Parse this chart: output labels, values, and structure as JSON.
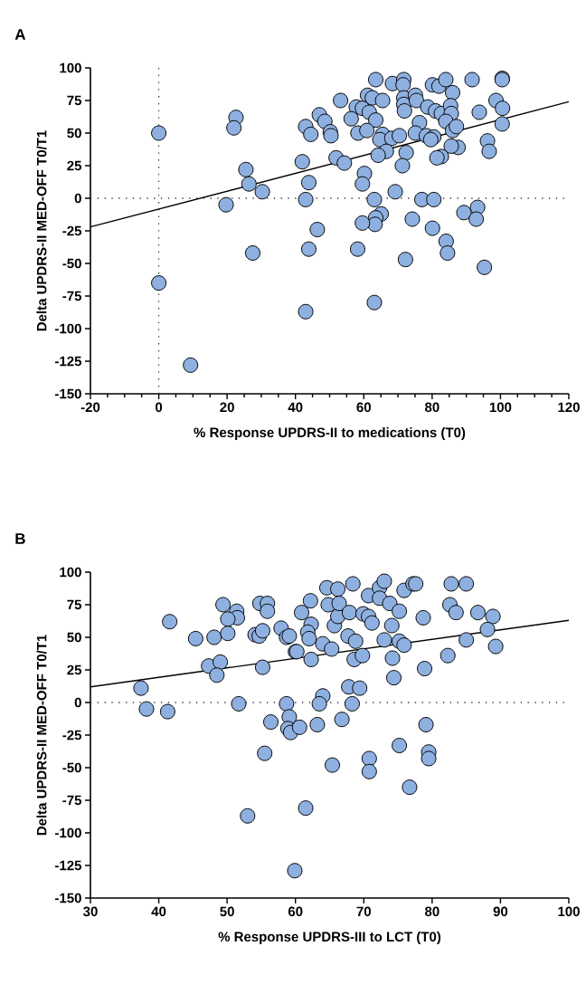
{
  "chart_data": [
    {
      "type": "scatter",
      "title": "A",
      "xlabel": "% Response UPDRS-II to medications (T0)",
      "ylabel": "Delta UPDRS-II MED-OFF T0/T1",
      "xlim": [
        -20,
        120
      ],
      "ylim": [
        -150,
        100
      ],
      "xticks": [
        -20,
        {
          "value": -15,
          "label": null
        },
        {
          "value": -10,
          "label": null
        },
        {
          "value": -5,
          "label": null
        },
        0,
        {
          "value": 5,
          "label": null
        },
        {
          "value": 10,
          "label": null
        },
        {
          "value": 15,
          "label": null
        },
        20,
        {
          "value": 25,
          "label": null
        },
        {
          "value": 30,
          "label": null
        },
        {
          "value": 35,
          "label": null
        },
        40,
        {
          "value": 45,
          "label": null
        },
        {
          "value": 50,
          "label": null
        },
        {
          "value": 55,
          "label": null
        },
        60,
        {
          "value": 65,
          "label": null
        },
        {
          "value": 70,
          "label": null
        },
        {
          "value": 75,
          "label": null
        },
        80,
        {
          "value": 85,
          "label": null
        },
        {
          "value": 90,
          "label": null
        },
        {
          "value": 95,
          "label": null
        },
        100,
        {
          "value": 105,
          "label": null
        },
        {
          "value": 110,
          "label": null
        },
        {
          "value": 115,
          "label": null
        },
        120
      ],
      "yticks": [
        -150,
        -125,
        -100,
        -75,
        -50,
        -25,
        0,
        25,
        50,
        75,
        100
      ],
      "ref_lines": [
        {
          "axis": "y",
          "value": 0,
          "line_style": "dotted"
        },
        {
          "axis": "x",
          "value": 0,
          "line_style": "dotted"
        }
      ],
      "series": [
        {
          "color": "#8eb0e0",
          "marker": "circle",
          "x": [
            0,
            22.6,
            22,
            25.5,
            26.4,
            30.3,
            19.7,
            27.5,
            0,
            9.3,
            63.5,
            68.4,
            71.7,
            71.5,
            80.1,
            82,
            84,
            86,
            91.7,
            100.5,
            100.5,
            53.2,
            61.1,
            62.5,
            65.5,
            57.8,
            59.6,
            61.6,
            63.5,
            56.3,
            47,
            48.6,
            43,
            44.5,
            50.2,
            50.4,
            58.3,
            60.9,
            71.7,
            71.7,
            71.9,
            75.1,
            75.4,
            78.7,
            81,
            82.7,
            85.4,
            85.6,
            84,
            76.3,
            75.1,
            78.3,
            80.5,
            86,
            87.1,
            87.6,
            85.6,
            82.7,
            81.4,
            65.5,
            64.7,
            68.2,
            70.4,
            66.6,
            64.2,
            72.4,
            71.3,
            79.6,
            93.8,
            98.7,
            100.6,
            100.5,
            96.2,
            96.7,
            42,
            51.9,
            54.3,
            43.9,
            60.2,
            59.6,
            43,
            63.1,
            69.2,
            77,
            80.5,
            65.1,
            63.5,
            63.3,
            59.6,
            74.2,
            89.3,
            93.3,
            92.9,
            80.1,
            46.4,
            43.9,
            58.2,
            84.1,
            84.5,
            72.2,
            95.3,
            63.1,
            43
          ],
          "values": [
            50,
            62,
            54,
            22,
            11,
            5,
            -5,
            -42,
            -65,
            -128,
            91,
            88,
            91,
            87,
            87,
            86,
            91,
            81,
            91,
            92,
            91,
            75,
            79,
            77,
            75,
            70,
            69,
            66,
            60,
            61,
            64,
            59,
            55,
            49,
            51,
            48,
            50,
            52,
            77,
            72,
            67,
            79,
            75,
            70,
            67,
            65,
            71,
            65,
            59,
            58,
            50,
            48,
            47,
            52,
            55,
            39,
            40,
            32,
            31,
            49,
            45,
            46,
            48,
            36,
            33,
            35,
            25,
            45,
            66,
            75,
            69,
            57,
            44,
            36,
            28,
            31,
            27,
            12,
            19,
            11,
            -1,
            -1,
            5,
            -1,
            -1,
            -12,
            -15,
            -20,
            -19,
            -16,
            -11,
            -7,
            -16,
            -23,
            -24,
            -39,
            -39,
            -33,
            -42,
            -47,
            -53,
            -80,
            -87
          ]
        },
        {
          "type": "line",
          "color": "#000000",
          "line_style": "solid",
          "x": [
            -20,
            120
          ],
          "values": [
            -22,
            74
          ]
        }
      ]
    },
    {
      "type": "scatter",
      "title": "B",
      "xlabel": "% Response UPDRS-III to LCT (T0)",
      "ylabel": "Delta UPDRS-II MED-OFF T0/T1",
      "xlim": [
        30,
        100
      ],
      "ylim": [
        -150,
        100
      ],
      "xticks": [
        30,
        40,
        50,
        60,
        70,
        80,
        90,
        100
      ],
      "yticks": [
        -150,
        -125,
        -100,
        -75,
        -50,
        -25,
        0,
        25,
        50,
        75,
        100
      ],
      "ref_lines": [
        {
          "axis": "y",
          "value": 0,
          "line_style": "dotted"
        }
      ],
      "series": [
        {
          "color": "#8eb0e0",
          "marker": "circle",
          "x": [
            37.4,
            38.2,
            41.3,
            41.6,
            45.4,
            48.1,
            49.4,
            51.4,
            51.5,
            50.1,
            50.1,
            47.3,
            49,
            48.5,
            51.7,
            54.1,
            54.7,
            55.2,
            54.8,
            55.9,
            55.9,
            55.2,
            56.4,
            55.5,
            53,
            57.9,
            58.7,
            60,
            58.7,
            59.1,
            58.9,
            59.3,
            60.6,
            59.9,
            60.9,
            62.2,
            62.3,
            61.8,
            62,
            60.2,
            62.3,
            59.1,
            64,
            65.3,
            65.7,
            66.2,
            64.8,
            64.6,
            66.2,
            68.4,
            66.4,
            67.9,
            67.7,
            68.8,
            68.6,
            69.8,
            69.9,
            70.7,
            71.2,
            70.7,
            72.3,
            73,
            72.3,
            73.8,
            75.2,
            74.1,
            73,
            75.2,
            75.9,
            74.2,
            75.9,
            77.2,
            77.6,
            78.7,
            78.9,
            74.4,
            82.3,
            82.8,
            85,
            82.6,
            83.5,
            86.7,
            88.9,
            88.1,
            85,
            89.3,
            67.8,
            69.4,
            68.3,
            64,
            63.5,
            63.2,
            66.8,
            79.1,
            75.2,
            79.5,
            79.5,
            70.8,
            70.8,
            65.4,
            76.7,
            61.5
          ],
          "values": [
            11,
            -5,
            -7,
            62,
            49,
            50,
            75,
            70,
            65,
            64,
            53,
            28,
            31,
            21,
            -1,
            52,
            51,
            55,
            76,
            76,
            70,
            27,
            -15,
            -39,
            -87,
            57,
            50,
            39,
            -1,
            -11,
            -20,
            -23,
            -19,
            -129,
            69,
            78,
            60,
            54,
            49,
            39,
            33,
            51,
            45,
            41,
            59,
            66,
            75,
            88,
            87,
            91,
            76,
            69,
            51,
            47,
            33,
            36,
            68,
            66,
            61,
            82,
            88,
            93,
            80,
            76,
            70,
            59,
            48,
            47,
            44,
            34,
            86,
            91,
            91,
            65,
            26,
            19,
            36,
            91,
            91,
            75,
            69,
            69,
            66,
            56,
            48,
            43,
            12,
            11,
            -1,
            5,
            -1,
            -17,
            -13,
            -17,
            -33,
            -38,
            -43,
            -43,
            -53,
            -48,
            -65,
            -81
          ]
        },
        {
          "type": "line",
          "color": "#000000",
          "line_style": "solid",
          "x": [
            30,
            100
          ],
          "values": [
            12,
            63
          ]
        }
      ]
    }
  ]
}
